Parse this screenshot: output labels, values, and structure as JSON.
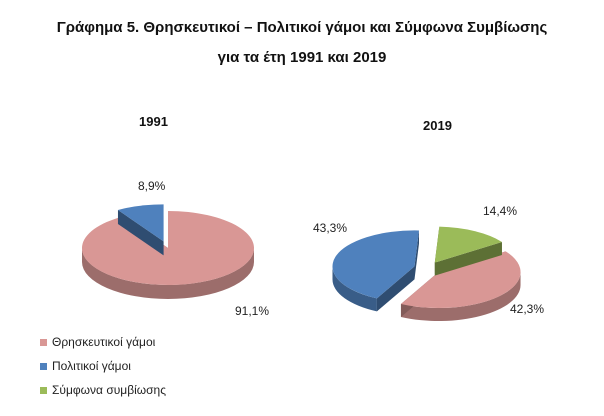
{
  "title_line1": "Γράφημα 5. Θρησκευτικοί – Πολιτικοί γάμοι και Σύμφωνα Συμβίωσης",
  "title_line2": "για τα έτη 1991 και 2019",
  "chart_data": [
    {
      "type": "pie",
      "title": "1991",
      "categories": [
        "Θρησκευτικοί γάμοι",
        "Πολιτικοί γάμοι"
      ],
      "values": [
        91.1,
        8.9
      ],
      "labels": [
        "91,1%",
        "8,9%"
      ],
      "colors": [
        "#d99795",
        "#4f81bd"
      ]
    },
    {
      "type": "pie",
      "title": "2019",
      "categories": [
        "Θρησκευτικοί γάμοι",
        "Πολιτικοί γάμοι",
        "Σύμφωνα συμβίωσης"
      ],
      "values": [
        42.3,
        43.3,
        14.4
      ],
      "labels": [
        "42,3%",
        "43,3%",
        "14,4%"
      ],
      "colors": [
        "#d99795",
        "#4f81bd",
        "#9bbb59"
      ]
    }
  ],
  "legend": [
    {
      "label": "Θρησκευτικοί γάμοι",
      "color": "#d99795"
    },
    {
      "label": "Πολιτικοί γάμοι",
      "color": "#4f81bd"
    },
    {
      "label": "Σύμφωνα συμβίωσης",
      "color": "#9bbb59"
    }
  ]
}
